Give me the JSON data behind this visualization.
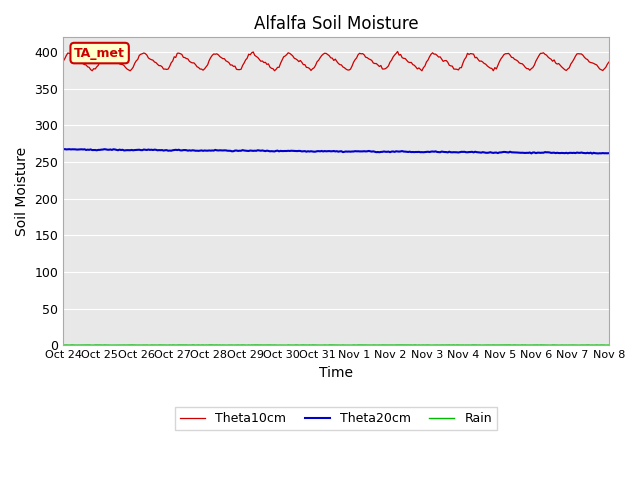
{
  "title": "Alfalfa Soil Moisture",
  "xlabel": "Time",
  "ylabel": "Soil Moisture",
  "ylim": [
    0,
    420
  ],
  "yticks": [
    0,
    50,
    100,
    150,
    200,
    250,
    300,
    350,
    400
  ],
  "n_days": 15,
  "xtick_labels": [
    "Oct 24",
    "Oct 25",
    "Oct 26",
    "Oct 27",
    "Oct 28",
    "Oct 29",
    "Oct 30",
    "Oct 31",
    "Nov 1",
    "Nov 2",
    "Nov 3",
    "Nov 4",
    "Nov 5",
    "Nov 6",
    "Nov 7",
    "Nov 8"
  ],
  "background_color": "#e8e8e8",
  "figure_bg": "#ffffff",
  "red_color": "#cc0000",
  "blue_color": "#0000cc",
  "green_color": "#00bb00",
  "legend_labels": [
    "Theta10cm",
    "Theta20cm",
    "Rain"
  ],
  "annotation_text": "TA_met",
  "annotation_bg": "#ffffcc",
  "annotation_border": "#cc0000"
}
